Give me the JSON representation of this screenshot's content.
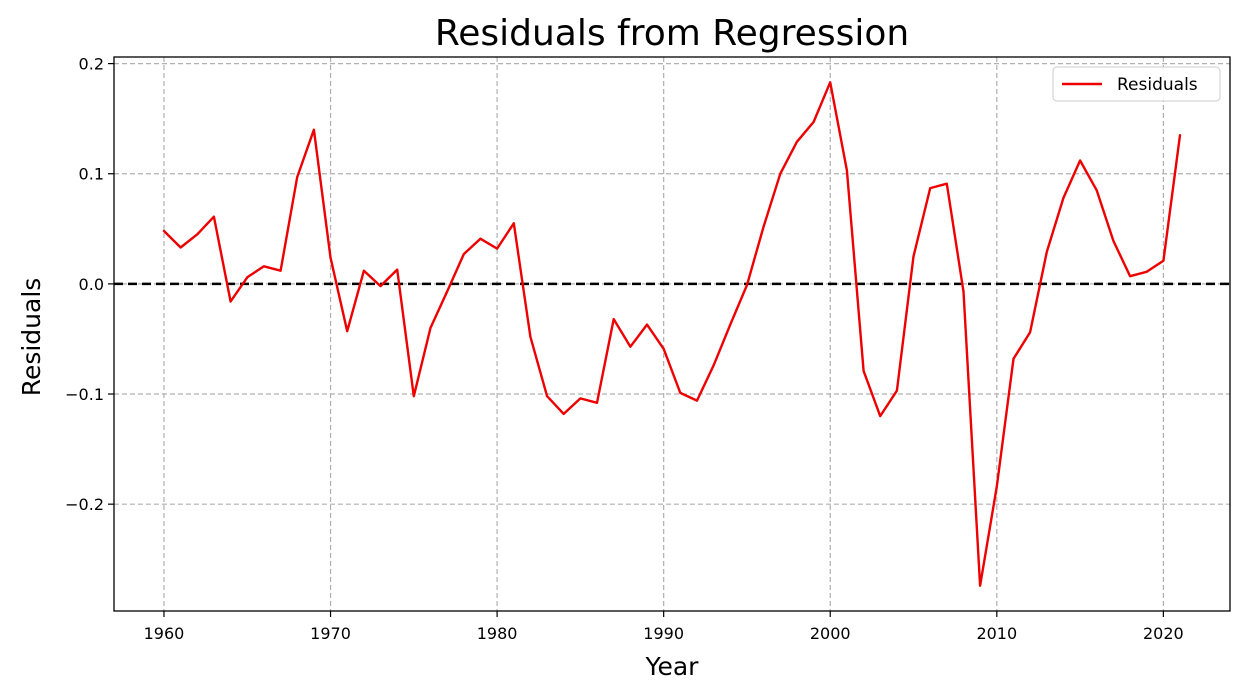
{
  "chart_data": {
    "type": "line",
    "title": "Residuals from Regression",
    "xlabel": "Year",
    "ylabel": "Residuals",
    "xlim": [
      1957,
      2024
    ],
    "ylim": [
      -0.297,
      0.206
    ],
    "xticks": [
      1960,
      1970,
      1980,
      1990,
      2000,
      2010,
      2020
    ],
    "xtick_labels": [
      "1960",
      "1970",
      "1980",
      "1990",
      "2000",
      "2010",
      "2020"
    ],
    "yticks": [
      -0.2,
      -0.1,
      0.0,
      0.1,
      0.2
    ],
    "ytick_labels": [
      "−0.2",
      "−0.1",
      "0.0",
      "0.1",
      "0.2"
    ],
    "grid": true,
    "legend_position": "top-right",
    "zero_line": {
      "y": 0,
      "color": "#000000",
      "style": "dashed"
    },
    "series": [
      {
        "name": "Residuals",
        "color": "#ee0000",
        "x": [
          1960,
          1961,
          1962,
          1963,
          1964,
          1965,
          1966,
          1967,
          1968,
          1969,
          1970,
          1971,
          1972,
          1973,
          1974,
          1975,
          1976,
          1977,
          1978,
          1979,
          1980,
          1981,
          1982,
          1983,
          1984,
          1985,
          1986,
          1987,
          1988,
          1989,
          1990,
          1991,
          1992,
          1993,
          1994,
          1995,
          1996,
          1997,
          1998,
          1999,
          2000,
          2001,
          2002,
          2003,
          2004,
          2005,
          2006,
          2007,
          2008,
          2009,
          2010,
          2011,
          2012,
          2013,
          2014,
          2015,
          2016,
          2017,
          2018,
          2019,
          2020,
          2021
        ],
        "y": [
          0.048,
          0.033,
          0.045,
          0.061,
          -0.016,
          0.006,
          0.016,
          0.012,
          0.097,
          0.14,
          0.024,
          -0.043,
          0.012,
          -0.002,
          0.013,
          -0.102,
          -0.04,
          -0.007,
          0.027,
          0.041,
          0.032,
          0.055,
          -0.048,
          -0.102,
          -0.118,
          -0.104,
          -0.108,
          -0.032,
          -0.057,
          -0.037,
          -0.059,
          -0.099,
          -0.106,
          -0.074,
          -0.037,
          -0.001,
          0.052,
          0.1,
          0.129,
          0.147,
          0.183,
          0.103,
          -0.079,
          -0.12,
          -0.097,
          0.025,
          0.087,
          0.091,
          -0.007,
          -0.274,
          -0.184,
          -0.068,
          -0.044,
          0.029,
          0.078,
          0.112,
          0.085,
          0.039,
          0.007,
          0.011,
          0.021,
          0.135
        ]
      }
    ]
  }
}
